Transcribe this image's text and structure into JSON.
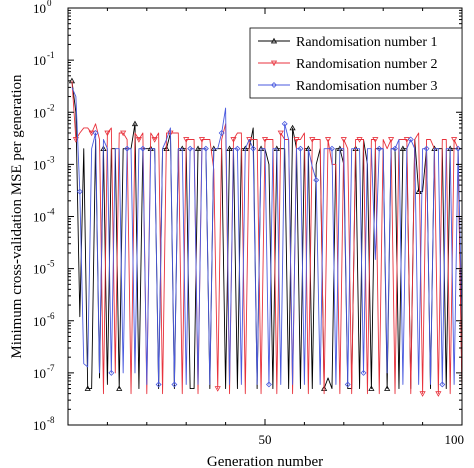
{
  "chart_data": {
    "type": "line",
    "xlabel": "Generation number",
    "ylabel": "Minimum cross-validation MSE per generation",
    "xlim": [
      0,
      100
    ],
    "ylim": [
      1e-08,
      1
    ],
    "y_scale": "log",
    "grid": false,
    "legend_position": "top-right",
    "x_ticks": [
      50,
      100
    ],
    "y_ticks": [
      {
        "mantissa": "10",
        "exponent": "0"
      },
      {
        "mantissa": "10",
        "exponent": "-1"
      },
      {
        "mantissa": "10",
        "exponent": "-2"
      },
      {
        "mantissa": "10",
        "exponent": "-3"
      },
      {
        "mantissa": "10",
        "exponent": "-4"
      },
      {
        "mantissa": "10",
        "exponent": "-5"
      },
      {
        "mantissa": "10",
        "exponent": "-6"
      },
      {
        "mantissa": "10",
        "exponent": "-7"
      },
      {
        "mantissa": "10",
        "exponent": "-8"
      }
    ],
    "series": [
      {
        "name": "Randomisation number 1",
        "color": "#000000",
        "marker": "triangle-up",
        "x": [
          1,
          2,
          3,
          4,
          5,
          6,
          7,
          8,
          9,
          10,
          11,
          12,
          13,
          14,
          15,
          16,
          17,
          18,
          19,
          20,
          21,
          22,
          23,
          24,
          25,
          26,
          27,
          28,
          29,
          30,
          31,
          32,
          33,
          34,
          35,
          36,
          37,
          38,
          39,
          40,
          41,
          42,
          43,
          44,
          45,
          46,
          47,
          48,
          49,
          50,
          51,
          52,
          53,
          54,
          55,
          56,
          57,
          58,
          59,
          60,
          61,
          62,
          63,
          64,
          65,
          66,
          67,
          68,
          69,
          70,
          71,
          72,
          73,
          74,
          75,
          76,
          77,
          78,
          79,
          80,
          81,
          82,
          83,
          84,
          85,
          86,
          87,
          88,
          89,
          90,
          91,
          92,
          93,
          94,
          95,
          96,
          97,
          98,
          99,
          100
        ],
        "values": [
          0.04,
          0.01,
          1.2e-06,
          0.002,
          5e-08,
          5e-08,
          0.003,
          8e-08,
          0.002,
          6e-08,
          0.002,
          0.002,
          5e-08,
          0.002,
          0.002,
          0.002,
          0.006,
          5e-08,
          0.002,
          0.002,
          0.002,
          0.002,
          5e-08,
          0.002,
          0.002,
          0.004,
          5e-08,
          0.002,
          0.002,
          0.002,
          5e-08,
          5e-08,
          0.002,
          0.002,
          0.002,
          5e-08,
          0.002,
          0.002,
          0.002,
          5e-08,
          0.002,
          0.002,
          5e-08,
          0.002,
          0.002,
          0.002,
          0.005,
          5e-08,
          0.002,
          0.002,
          0.001,
          5e-08,
          0.002,
          0.002,
          0.002,
          5e-08,
          0.005,
          0.002,
          5e-08,
          0.002,
          0.002,
          5e-08,
          0.001,
          0.002,
          5e-08,
          8e-08,
          5e-08,
          0.002,
          0.002,
          0.001,
          5e-08,
          5e-08,
          0.002,
          5e-08,
          0.003,
          0.001,
          5e-08,
          0.002,
          0.002,
          0.002,
          5e-08,
          0.002,
          0.002,
          5e-08,
          0.002,
          0.002,
          5e-08,
          0.003,
          0.0003,
          0.0003,
          0.002,
          5e-08,
          0.002,
          0.002,
          0.002,
          5e-08,
          0.002,
          0.002,
          0.002,
          5e-08
        ]
      },
      {
        "name": "Randomisation number 2",
        "color": "#e8323c",
        "marker": "triangle-down",
        "x": [
          1,
          2,
          3,
          4,
          5,
          6,
          7,
          8,
          9,
          10,
          11,
          12,
          13,
          14,
          15,
          16,
          17,
          18,
          19,
          20,
          21,
          22,
          23,
          24,
          25,
          26,
          27,
          28,
          29,
          30,
          31,
          32,
          33,
          34,
          35,
          36,
          37,
          38,
          39,
          40,
          41,
          42,
          43,
          44,
          45,
          46,
          47,
          48,
          49,
          50,
          51,
          52,
          53,
          54,
          55,
          56,
          57,
          58,
          59,
          60,
          61,
          62,
          63,
          64,
          65,
          66,
          67,
          68,
          69,
          70,
          71,
          72,
          73,
          74,
          75,
          76,
          77,
          78,
          79,
          80,
          81,
          82,
          83,
          84,
          85,
          86,
          87,
          88,
          89,
          90,
          91,
          92,
          93,
          94,
          95,
          96,
          97,
          98,
          99,
          100
        ],
        "values": [
          0.04,
          0.003,
          0.004,
          0.005,
          0.005,
          0.004,
          0.006,
          0.003,
          4e-08,
          0.004,
          0.005,
          1e-07,
          0.004,
          0.004,
          0.003,
          4e-08,
          0.004,
          0.003,
          0.004,
          4e-08,
          0.004,
          0.003,
          0.004,
          4e-08,
          0.004,
          0.004,
          0.004,
          0.004,
          4e-08,
          0.003,
          0.003,
          0.003,
          4e-08,
          0.003,
          0.003,
          0.003,
          0.0008,
          5e-08,
          0.003,
          0.006,
          4e-08,
          0.003,
          0.004,
          0.004,
          4e-08,
          0.003,
          0.003,
          0.003,
          4e-08,
          0.003,
          0.003,
          0.003,
          4e-08,
          0.004,
          0.003,
          0.003,
          4e-08,
          0.003,
          0.003,
          0.004,
          4e-08,
          0.003,
          0.003,
          0.003,
          4e-08,
          0.003,
          0.001,
          0.001,
          4e-08,
          0.003,
          0.002,
          4e-08,
          0.003,
          0.003,
          0.003,
          4e-08,
          0.003,
          0.003,
          4e-08,
          0.003,
          0.002,
          0.003,
          4e-08,
          0.003,
          0.003,
          0.003,
          4e-08,
          0.003,
          0.004,
          4e-08,
          0.003,
          0.003,
          0.002,
          4e-08,
          0.003,
          0.003,
          4e-08,
          0.003,
          0.002,
          4e-08
        ]
      },
      {
        "name": "Randomisation number 3",
        "color": "#4a5adf",
        "marker": "diamond",
        "x": [
          1,
          2,
          3,
          4,
          5,
          6,
          7,
          8,
          9,
          10,
          11,
          12,
          13,
          14,
          15,
          16,
          17,
          18,
          19,
          20,
          21,
          22,
          23,
          24,
          25,
          26,
          27,
          28,
          29,
          30,
          31,
          32,
          33,
          34,
          35,
          36,
          37,
          38,
          39,
          40,
          41,
          42,
          43,
          44,
          45,
          46,
          47,
          48,
          49,
          50,
          51,
          52,
          53,
          54,
          55,
          56,
          57,
          58,
          59,
          60,
          61,
          62,
          63,
          64,
          65,
          66,
          67,
          68,
          69,
          70,
          71,
          72,
          73,
          74,
          75,
          76,
          77,
          78,
          79,
          80,
          81,
          82,
          83,
          84,
          85,
          86,
          87,
          88,
          89,
          90,
          91,
          92,
          93,
          94,
          95,
          96,
          97,
          98,
          99,
          100
        ],
        "values": [
          0.03,
          0.02,
          0.0003,
          1.5e-07,
          1.3e-07,
          0.002,
          0.004,
          1e-07,
          0.003,
          0.002,
          1e-07,
          0.002,
          0.002,
          1e-07,
          0.002,
          0.002,
          1e-07,
          0.002,
          0.002,
          6e-08,
          0.002,
          0.002,
          6e-08,
          0.002,
          0.003,
          0.005,
          6e-08,
          0.002,
          0.002,
          6e-08,
          0.002,
          0.002,
          6e-08,
          0.002,
          0.002,
          6e-08,
          0.002,
          0.002,
          0.004,
          0.012,
          6e-08,
          0.002,
          0.002,
          6e-08,
          0.002,
          0.003,
          0.002,
          6e-08,
          0.002,
          0.002,
          6e-08,
          0.002,
          0.002,
          6e-08,
          0.006,
          0.003,
          6e-08,
          0.002,
          0.002,
          6e-08,
          0.002,
          0.0009,
          0.0005,
          6e-08,
          0.002,
          0.002,
          0.002,
          6e-08,
          0.002,
          0.002,
          6e-08,
          0.002,
          0.002,
          0.002,
          1e-07,
          0.002,
          0.002,
          1.5e-05,
          0.002,
          0.002,
          1e-07,
          0.002,
          0.002,
          0.003,
          6e-08,
          0.002,
          0.003,
          0.002,
          6e-08,
          0.002,
          0.002,
          6e-08,
          0.002,
          0.002,
          6e-08,
          0.002,
          0.002,
          6e-08,
          0.002,
          1e-06
        ]
      }
    ]
  }
}
